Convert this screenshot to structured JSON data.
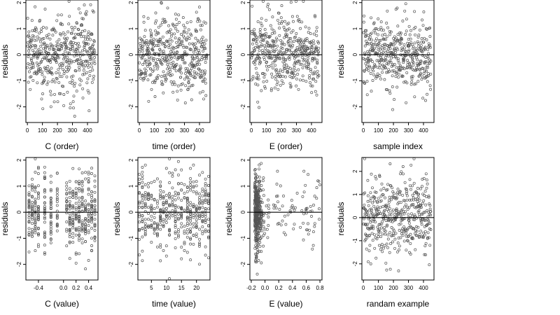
{
  "colors": {
    "points": "#555555",
    "axes": "#000000",
    "background": "#ffffff"
  },
  "chart_data": [
    {
      "type": "scatter",
      "xlabel": "C (order)",
      "ylabel": "residuals",
      "xlim": [
        -10,
        470
      ],
      "ylim": [
        -2.6,
        2.1
      ],
      "xticks": [
        0,
        100,
        200,
        300,
        400
      ],
      "xtick_labels": [
        "0",
        "100",
        "200",
        "300",
        "400"
      ],
      "yticks": [
        -2,
        -1,
        0,
        1,
        2
      ],
      "ytick_labels": [
        "-2",
        "-1",
        "0",
        "1",
        "2"
      ],
      "hline": 0,
      "x_kind": "index",
      "y_spread": 1.0
    },
    {
      "type": "scatter",
      "xlabel": "time (order)",
      "ylabel": "residuals",
      "xlim": [
        -10,
        470
      ],
      "ylim": [
        -2.6,
        2.1
      ],
      "xticks": [
        0,
        100,
        200,
        300,
        400
      ],
      "xtick_labels": [
        "0",
        "100",
        "200",
        "300",
        "400"
      ],
      "yticks": [
        -2,
        -1,
        0,
        1,
        2
      ],
      "ytick_labels": [
        "-2",
        "-1",
        "0",
        "1",
        "2"
      ],
      "hline": 0,
      "x_kind": "index",
      "y_spread": 1.0
    },
    {
      "type": "scatter",
      "xlabel": "E (order)",
      "ylabel": "residuals",
      "xlim": [
        -10,
        470
      ],
      "ylim": [
        -2.6,
        2.1
      ],
      "xticks": [
        0,
        100,
        200,
        300,
        400
      ],
      "xtick_labels": [
        "0",
        "100",
        "200",
        "300",
        "400"
      ],
      "yticks": [
        -2,
        -1,
        0,
        1,
        2
      ],
      "ytick_labels": [
        "-2",
        "-1",
        "0",
        "1",
        "2"
      ],
      "hline": 0,
      "x_kind": "index",
      "y_spread": 0.95
    },
    {
      "type": "scatter",
      "xlabel": "sample index",
      "ylabel": "residuals",
      "xlim": [
        -10,
        470
      ],
      "ylim": [
        -2.6,
        2.1
      ],
      "xticks": [
        0,
        100,
        200,
        300,
        400
      ],
      "xtick_labels": [
        "0",
        "100",
        "200",
        "300",
        "400"
      ],
      "yticks": [
        -2,
        -1,
        0,
        1,
        2
      ],
      "ytick_labels": [
        "-2",
        "-1",
        "0",
        "1",
        "2"
      ],
      "hline": 0,
      "x_kind": "index",
      "y_spread": 0.9
    },
    {
      "type": "scatter",
      "xlabel": "C (value)",
      "ylabel": "residuals",
      "xlim": [
        -0.6,
        0.55
      ],
      "ylim": [
        -2.6,
        2.1
      ],
      "xticks": [
        -0.4,
        0.0,
        0.2,
        0.4
      ],
      "xtick_labels": [
        "-0.4",
        "0.0",
        "0.2",
        "0.4"
      ],
      "yticks": [
        -2,
        -1,
        0,
        1,
        2
      ],
      "ytick_labels": [
        "-2",
        "-1",
        "0",
        "1",
        "2"
      ],
      "hline": 0,
      "x_kind": "discrete",
      "x_levels": [
        -0.55,
        -0.5,
        -0.45,
        -0.4,
        -0.3,
        -0.2,
        -0.1,
        0.05,
        0.1,
        0.15,
        0.2,
        0.25,
        0.3,
        0.35,
        0.4,
        0.45,
        0.5
      ],
      "y_spread": 1.0
    },
    {
      "type": "scatter",
      "xlabel": "time (value)",
      "ylabel": "residuals",
      "xlim": [
        0.5,
        24.5
      ],
      "ylim": [
        -2.6,
        2.1
      ],
      "xticks": [
        5,
        10,
        15,
        20
      ],
      "xtick_labels": [
        "5",
        "10",
        "15",
        "20"
      ],
      "yticks": [
        -2,
        -1,
        0,
        1,
        2
      ],
      "ytick_labels": [
        "-2",
        "-1",
        "0",
        "1",
        "2"
      ],
      "hline": 0,
      "x_kind": "discrete",
      "x_levels": [
        1,
        2,
        3,
        4,
        5,
        6,
        7,
        8,
        9,
        10,
        11,
        12,
        13,
        14,
        15,
        16,
        17,
        18,
        19,
        20,
        21,
        22,
        23,
        24
      ],
      "y_spread": 1.0
    },
    {
      "type": "scatter",
      "xlabel": "E (value)",
      "ylabel": "residuals",
      "xlim": [
        -0.22,
        0.83
      ],
      "ylim": [
        -2.6,
        2.1
      ],
      "xticks": [
        -0.2,
        0.0,
        0.2,
        0.4,
        0.6,
        0.8
      ],
      "xtick_labels": [
        "-0.2",
        "0.0",
        "0.2",
        "0.4",
        "0.6",
        "0.8"
      ],
      "yticks": [
        -2,
        -1,
        0,
        1,
        2
      ],
      "ytick_labels": [
        "-2",
        "-1",
        "0",
        "1",
        "2"
      ],
      "hline": 0,
      "x_kind": "skewed",
      "y_spread": 0.95
    },
    {
      "type": "scatter",
      "xlabel": "randam example",
      "ylabel": "residuals",
      "xlim": [
        -10,
        470
      ],
      "ylim": [
        -2.7,
        2.6
      ],
      "xticks": [
        0,
        100,
        200,
        300,
        400
      ],
      "xtick_labels": [
        "0",
        "100",
        "200",
        "300",
        "400"
      ],
      "yticks": [
        -2,
        -1,
        0,
        1,
        2
      ],
      "ytick_labels": [
        "-2",
        "-1",
        "0",
        "1",
        "2"
      ],
      "hline": 0,
      "x_kind": "index",
      "y_spread": 1.2
    }
  ]
}
